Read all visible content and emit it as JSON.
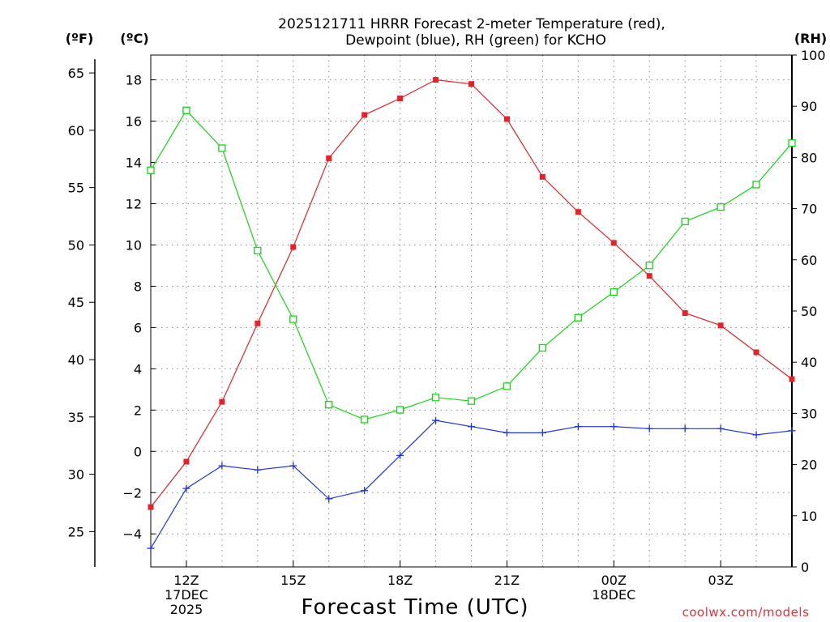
{
  "chart_data": {
    "type": "line",
    "title": [
      "2025121711 HRRR Forecast 2-meter Temperature (red),",
      "Dewpoint (blue), RH (green) for KCHO"
    ],
    "xlabel": "Forecast Time (UTC)",
    "credit": "coolwx.com/models",
    "units": {
      "fahrenheit": "(ºF)",
      "celsius": "(ºC)",
      "rh": "(RH)"
    },
    "hours": [
      11,
      12,
      13,
      14,
      15,
      16,
      17,
      18,
      19,
      20,
      21,
      22,
      23,
      24,
      25,
      26,
      27,
      28,
      29
    ],
    "xlim": [
      11,
      29
    ],
    "x_ticks": [
      {
        "hour": 12,
        "lines": [
          "12Z",
          "17DEC",
          "2025"
        ]
      },
      {
        "hour": 15,
        "lines": [
          "15Z"
        ]
      },
      {
        "hour": 18,
        "lines": [
          "18Z"
        ]
      },
      {
        "hour": 21,
        "lines": [
          "21Z"
        ]
      },
      {
        "hour": 24,
        "lines": [
          "00Z",
          "18DEC"
        ]
      },
      {
        "hour": 27,
        "lines": [
          "03Z"
        ]
      }
    ],
    "celsius_axis": {
      "ylim": [
        -5.6,
        19.2
      ],
      "ticks": [
        -4,
        -2,
        0,
        2,
        4,
        6,
        8,
        10,
        12,
        14,
        16,
        18
      ]
    },
    "fahrenheit_axis": {
      "ticks": [
        25,
        30,
        35,
        40,
        45,
        50,
        55,
        60,
        65
      ]
    },
    "rh_axis": {
      "ylim": [
        0,
        100
      ],
      "ticks": [
        0,
        10,
        20,
        30,
        40,
        50,
        60,
        70,
        80,
        90,
        100
      ]
    },
    "series": [
      {
        "name": "Temperature",
        "unit": "C",
        "color": "#e8202a",
        "marker": "square-filled",
        "values": [
          -2.7,
          -0.5,
          2.4,
          6.2,
          9.9,
          14.2,
          16.3,
          17.1,
          18.0,
          17.8,
          16.1,
          13.3,
          11.6,
          10.1,
          8.5,
          6.7,
          6.1,
          4.8,
          3.5
        ]
      },
      {
        "name": "Dewpoint",
        "unit": "C",
        "color": "#1e32e6",
        "marker": "plus",
        "values": [
          -4.7,
          -1.8,
          -0.7,
          -0.9,
          -0.7,
          -2.3,
          -1.9,
          -0.2,
          1.5,
          1.2,
          0.9,
          0.9,
          1.2,
          1.2,
          1.1,
          1.1,
          1.1,
          0.8,
          1.0
        ]
      },
      {
        "name": "RH",
        "unit": "%",
        "color": "#14d814",
        "marker": "square-open",
        "values": [
          77.5,
          89.2,
          81.8,
          61.8,
          48.4,
          31.7,
          28.8,
          30.7,
          33.1,
          32.4,
          35.3,
          42.8,
          48.7,
          53.7,
          58.9,
          67.5,
          70.3,
          74.7,
          82.8
        ]
      }
    ]
  }
}
